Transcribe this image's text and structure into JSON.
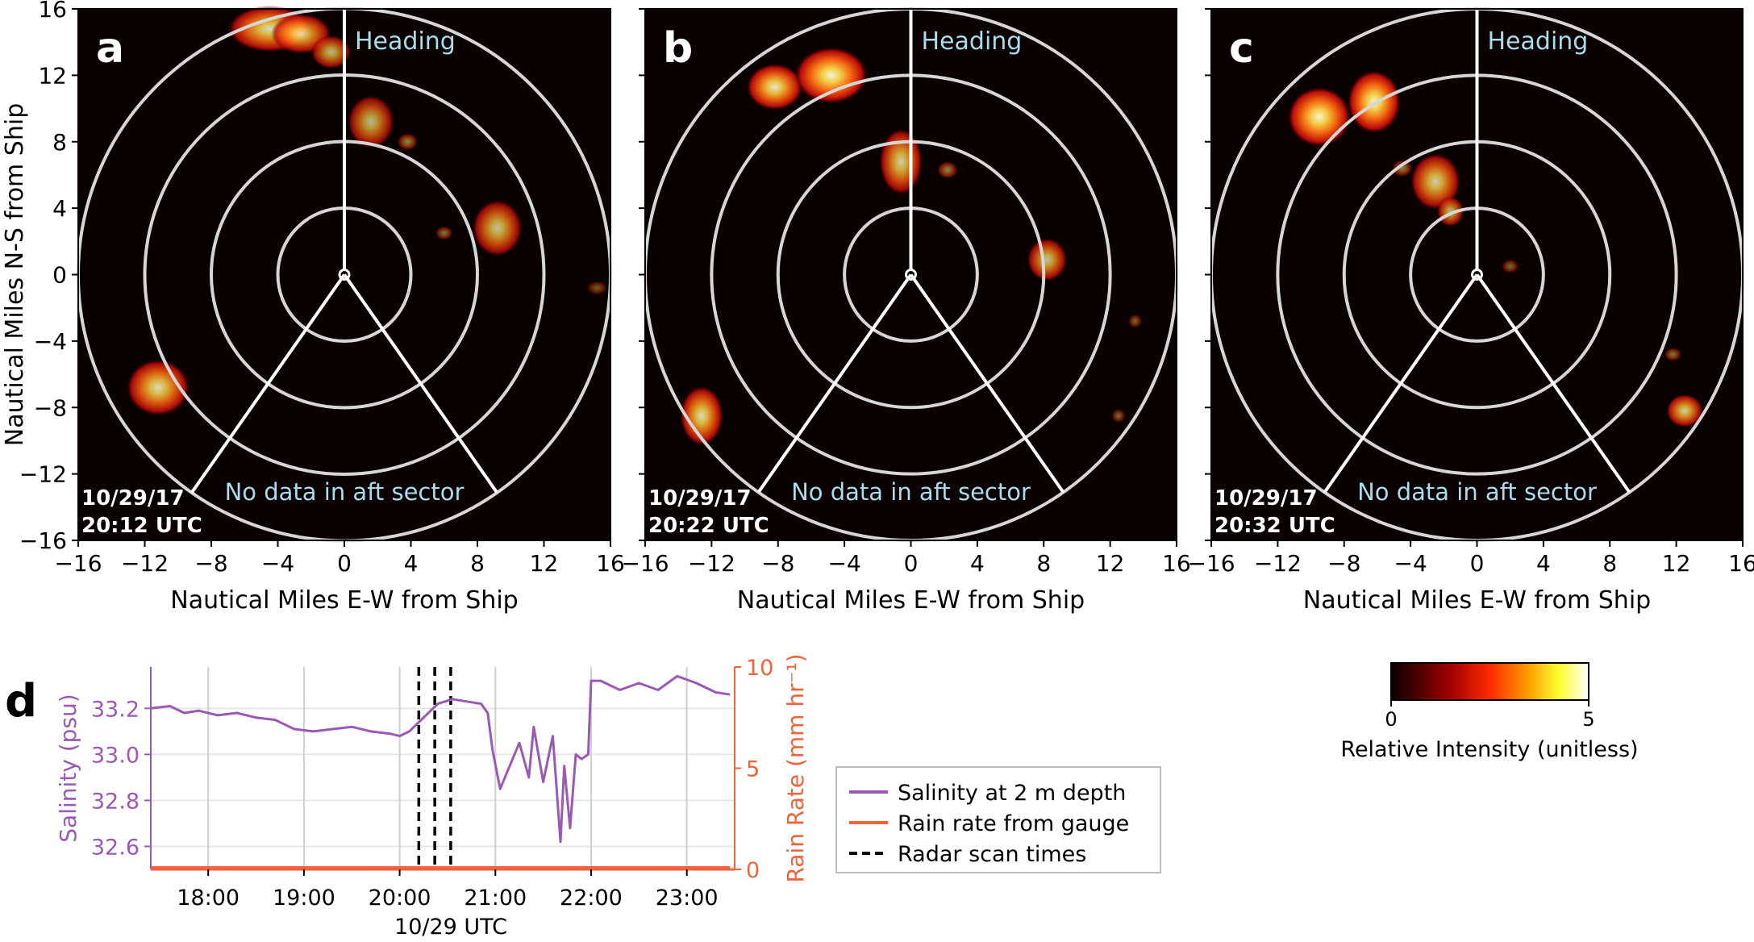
{
  "panels": [
    {
      "letter": "a",
      "date": "10/29/17",
      "time": "20:12 UTC",
      "heading_label": "Heading",
      "aft_label": "No data in aft sector",
      "xlabel": "Nautical Miles E-W from Ship",
      "ylabel": "Nautical Miles N-S from Ship",
      "xlim": [
        -16,
        16
      ],
      "ylim": [
        -16,
        16
      ],
      "ticks": [
        -16,
        -12,
        -8,
        -4,
        0,
        4,
        8,
        12,
        16
      ],
      "ring_radii_nm": [
        4,
        8,
        12,
        16
      ],
      "echoes": [
        {
          "x": -4.5,
          "y": 14.8,
          "w": 2.5,
          "h": 1.4,
          "i": 0.85
        },
        {
          "x": -2.6,
          "y": 14.5,
          "w": 1.8,
          "h": 1.2,
          "i": 0.8
        },
        {
          "x": -0.8,
          "y": 13.4,
          "w": 1.2,
          "h": 1.0,
          "i": 0.7
        },
        {
          "x": 1.6,
          "y": 9.2,
          "w": 1.4,
          "h": 1.6,
          "i": 0.7
        },
        {
          "x": 3.8,
          "y": 8.0,
          "w": 0.6,
          "h": 0.5,
          "i": 0.5
        },
        {
          "x": 9.2,
          "y": 2.8,
          "w": 1.5,
          "h": 1.7,
          "i": 0.75
        },
        {
          "x": 6.0,
          "y": 2.5,
          "w": 0.5,
          "h": 0.4,
          "i": 0.45
        },
        {
          "x": 15.2,
          "y": -0.8,
          "w": 0.6,
          "h": 0.4,
          "i": 0.35
        },
        {
          "x": -11.2,
          "y": -6.8,
          "w": 1.9,
          "h": 1.7,
          "i": 0.85
        }
      ]
    },
    {
      "letter": "b",
      "date": "10/29/17",
      "time": "20:22 UTC",
      "heading_label": "Heading",
      "aft_label": "No data in aft sector",
      "xlabel": "Nautical Miles E-W from Ship",
      "xlim": [
        -16,
        16
      ],
      "ylim": [
        -16,
        16
      ],
      "ticks": [
        -16,
        -12,
        -8,
        -4,
        0,
        4,
        8,
        12,
        16
      ],
      "ring_radii_nm": [
        4,
        8,
        12,
        16
      ],
      "echoes": [
        {
          "x": -8.2,
          "y": 11.3,
          "w": 1.7,
          "h": 1.4,
          "i": 0.9
        },
        {
          "x": -4.8,
          "y": 12.0,
          "w": 2.2,
          "h": 1.7,
          "i": 0.95
        },
        {
          "x": -0.6,
          "y": 6.8,
          "w": 1.3,
          "h": 2.0,
          "i": 0.8
        },
        {
          "x": 2.2,
          "y": 6.3,
          "w": 0.6,
          "h": 0.5,
          "i": 0.5
        },
        {
          "x": 8.2,
          "y": 0.9,
          "w": 1.2,
          "h": 1.3,
          "i": 0.75
        },
        {
          "x": 13.5,
          "y": -2.8,
          "w": 0.4,
          "h": 0.4,
          "i": 0.4
        },
        {
          "x": 12.5,
          "y": -8.5,
          "w": 0.4,
          "h": 0.4,
          "i": 0.4
        },
        {
          "x": -12.6,
          "y": -8.5,
          "w": 1.3,
          "h": 1.8,
          "i": 0.85
        }
      ]
    },
    {
      "letter": "c",
      "date": "10/29/17",
      "time": "20:32 UTC",
      "heading_label": "Heading",
      "aft_label": "No data in aft sector",
      "xlabel": "Nautical Miles E-W from Ship",
      "xlim": [
        -16,
        16
      ],
      "ylim": [
        -16,
        16
      ],
      "ticks": [
        -16,
        -12,
        -8,
        -4,
        0,
        4,
        8,
        12,
        16
      ],
      "ring_radii_nm": [
        4,
        8,
        12,
        16
      ],
      "echoes": [
        {
          "x": -9.5,
          "y": 9.5,
          "w": 1.9,
          "h": 1.8,
          "i": 0.95
        },
        {
          "x": -6.2,
          "y": 10.4,
          "w": 1.6,
          "h": 1.9,
          "i": 0.95
        },
        {
          "x": -2.5,
          "y": 5.6,
          "w": 1.5,
          "h": 1.7,
          "i": 0.8
        },
        {
          "x": -1.6,
          "y": 3.8,
          "w": 0.8,
          "h": 0.9,
          "i": 0.7
        },
        {
          "x": -4.5,
          "y": 6.4,
          "w": 0.6,
          "h": 0.5,
          "i": 0.5
        },
        {
          "x": 2.0,
          "y": 0.5,
          "w": 0.5,
          "h": 0.4,
          "i": 0.4
        },
        {
          "x": 11.8,
          "y": -4.8,
          "w": 0.5,
          "h": 0.4,
          "i": 0.45
        },
        {
          "x": 12.5,
          "y": -8.2,
          "w": 1.1,
          "h": 1.0,
          "i": 0.8
        }
      ]
    }
  ],
  "panel_d": {
    "letter": "d",
    "xlabel": "10/29 UTC",
    "ylabel_left": "Salinity (psu)",
    "ylabel_right": "Rain Rate (mm hr⁻¹)",
    "left_ticks": [
      "32.6",
      "32.8",
      "33.0",
      "33.2"
    ],
    "right_ticks": [
      "0",
      "5",
      "10"
    ],
    "time_ticks": [
      "18:00",
      "19:00",
      "20:00",
      "21:00",
      "22:00",
      "23:00"
    ],
    "legend": [
      "Salinity at 2 m depth",
      "Rain rate from gauge",
      "Radar scan times"
    ]
  },
  "colorbar": {
    "label": "Relative Intensity (unitless)",
    "min_label": "0",
    "max_label": "5"
  },
  "colors": {
    "salinity": "#9b59b6",
    "rain": "#f4623a",
    "heading_text": "#a8dcef",
    "ring": "#d6d6d6"
  },
  "chart_data": [
    {
      "type": "heatmap",
      "panel": "a",
      "title": "10/29/17 20:12 UTC",
      "xlabel": "Nautical Miles E-W from Ship",
      "ylabel": "Nautical Miles N-S from Ship",
      "xlim": [
        -16,
        16
      ],
      "ylim": [
        -16,
        16
      ],
      "value_range": [
        0,
        5
      ]
    },
    {
      "type": "heatmap",
      "panel": "b",
      "title": "10/29/17 20:22 UTC",
      "xlabel": "Nautical Miles E-W from Ship",
      "xlim": [
        -16,
        16
      ],
      "ylim": [
        -16,
        16
      ],
      "value_range": [
        0,
        5
      ]
    },
    {
      "type": "heatmap",
      "panel": "c",
      "title": "10/29/17 20:32 UTC",
      "xlabel": "Nautical Miles E-W from Ship",
      "xlim": [
        -16,
        16
      ],
      "ylim": [
        -16,
        16
      ],
      "value_range": [
        0,
        5
      ]
    },
    {
      "type": "line",
      "panel": "d",
      "xlabel": "10/29 UTC",
      "ylabel": "Salinity (psu)",
      "ylabel_right": "Rain Rate (mm hr⁻¹)",
      "xlim": [
        17.4,
        23.5
      ],
      "ylim": [
        32.5,
        33.38
      ],
      "ylim_right": [
        0,
        10
      ],
      "series": [
        {
          "name": "Salinity at 2 m depth",
          "x": [
            17.4,
            17.6,
            17.75,
            17.9,
            18.1,
            18.3,
            18.5,
            18.7,
            18.9,
            19.1,
            19.3,
            19.5,
            19.7,
            19.9,
            20.0,
            20.1,
            20.2,
            20.3,
            20.4,
            20.55,
            20.7,
            20.85,
            20.92,
            20.97,
            21.05,
            21.15,
            21.25,
            21.35,
            21.4,
            21.5,
            21.6,
            21.68,
            21.72,
            21.78,
            21.84,
            21.9,
            21.97,
            22.0,
            22.1,
            22.3,
            22.5,
            22.7,
            22.9,
            23.1,
            23.3,
            23.45
          ],
          "y": [
            33.2,
            33.21,
            33.18,
            33.19,
            33.17,
            33.18,
            33.16,
            33.15,
            33.11,
            33.1,
            33.11,
            33.12,
            33.1,
            33.09,
            33.08,
            33.1,
            33.14,
            33.18,
            33.22,
            33.24,
            33.23,
            33.22,
            33.18,
            33.02,
            32.85,
            32.95,
            33.05,
            32.9,
            33.12,
            32.88,
            33.08,
            32.62,
            32.95,
            32.68,
            33.0,
            32.98,
            33.0,
            33.32,
            33.32,
            33.28,
            33.31,
            33.28,
            33.34,
            33.31,
            33.27,
            33.26
          ]
        },
        {
          "name": "Rain rate from gauge",
          "x": [
            17.4,
            23.45
          ],
          "y": [
            0,
            0
          ]
        }
      ],
      "radar_scan_times": [
        "20:12",
        "20:22",
        "20:32"
      ]
    }
  ]
}
